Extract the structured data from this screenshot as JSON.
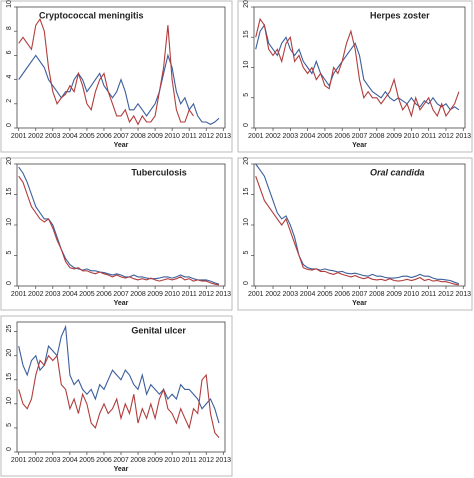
{
  "chart_data": [
    {
      "type": "line",
      "title": "Cryptococcal meningitis",
      "xlabel": "Year",
      "x": [
        2001,
        2001.25,
        2001.5,
        2001.75,
        2002,
        2002.25,
        2002.5,
        2002.75,
        2003,
        2003.25,
        2003.5,
        2003.75,
        2004,
        2004.25,
        2004.5,
        2004.75,
        2005,
        2005.25,
        2005.5,
        2005.75,
        2006,
        2006.25,
        2006.5,
        2006.75,
        2007,
        2007.25,
        2007.5,
        2007.75,
        2008,
        2008.25,
        2008.5,
        2008.75,
        2009,
        2009.25,
        2009.5,
        2009.75,
        2010,
        2010.25,
        2010.5,
        2010.75,
        2011,
        2011.25,
        2011.5,
        2011.75,
        2012,
        2012.25,
        2012.5,
        2012.75
      ],
      "xlim": [
        2000.9,
        2013.1
      ],
      "xticks": [
        2001,
        2002,
        2003,
        2004,
        2005,
        2006,
        2007,
        2008,
        2009,
        2010,
        2011,
        2012,
        2013
      ],
      "ylim": [
        0,
        10
      ],
      "yticks": [
        0,
        2,
        4,
        6,
        8,
        10
      ],
      "series": [
        {
          "color": "#3b5f9c",
          "values": [
            4,
            4.5,
            5,
            5.5,
            6,
            5.5,
            5,
            4,
            3.5,
            3,
            2.5,
            3,
            3,
            4,
            4.5,
            4,
            3,
            3.5,
            4,
            4.5,
            3.5,
            3,
            2.5,
            3,
            4,
            3,
            1.5,
            1.5,
            2,
            1.5,
            1,
            1.5,
            2,
            3,
            4.5,
            6,
            5,
            3,
            2,
            2.5,
            1.5,
            2,
            1,
            0.5,
            0.5,
            0.3,
            0.5,
            0.8
          ]
        },
        {
          "color": "#b23c3c",
          "values": [
            7,
            7.5,
            7,
            6.5,
            8.5,
            9,
            8,
            5,
            3,
            2,
            2.5,
            2.8,
            3.5,
            3,
            4.5,
            3.5,
            2,
            1.5,
            3,
            4,
            4.5,
            3,
            2,
            1,
            1,
            1.5,
            0.5,
            1,
            0.3,
            1,
            0.5,
            0.5,
            1,
            3,
            5,
            8.5,
            4,
            1.5,
            0.5,
            0.5,
            1.5,
            1,
            null,
            null,
            null,
            null,
            null,
            null
          ]
        }
      ]
    },
    {
      "type": "line",
      "title": "Herpes zoster",
      "xlabel": "Year",
      "x": [
        2001,
        2001.25,
        2001.5,
        2001.75,
        2002,
        2002.25,
        2002.5,
        2002.75,
        2003,
        2003.25,
        2003.5,
        2003.75,
        2004,
        2004.25,
        2004.5,
        2004.75,
        2005,
        2005.25,
        2005.5,
        2005.75,
        2006,
        2006.25,
        2006.5,
        2006.75,
        2007,
        2007.25,
        2007.5,
        2007.75,
        2008,
        2008.25,
        2008.5,
        2008.75,
        2009,
        2009.25,
        2009.5,
        2009.75,
        2010,
        2010.25,
        2010.5,
        2010.75,
        2011,
        2011.25,
        2011.5,
        2011.75,
        2012,
        2012.25,
        2012.5,
        2012.75
      ],
      "xlim": [
        2000.9,
        2013.1
      ],
      "xticks": [
        2001,
        2002,
        2003,
        2004,
        2005,
        2006,
        2007,
        2008,
        2009,
        2010,
        2011,
        2012,
        2013
      ],
      "ylim": [
        0,
        20
      ],
      "yticks": [
        0,
        5,
        10,
        15,
        20
      ],
      "series": [
        {
          "color": "#3b5f9c",
          "values": [
            13,
            16,
            17,
            14,
            13,
            12,
            14,
            15,
            13,
            12,
            13,
            11,
            10,
            9,
            11,
            9,
            8,
            7,
            9,
            10,
            11,
            12,
            13,
            14,
            12,
            8,
            7,
            6,
            5.5,
            5,
            6,
            5,
            4.5,
            5,
            4.5,
            4,
            5,
            4,
            3.5,
            4.5,
            4,
            5,
            4,
            3.5,
            4,
            3,
            3.5,
            3
          ]
        },
        {
          "color": "#b23c3c",
          "values": [
            15,
            18,
            17,
            13,
            12,
            13,
            11,
            14,
            15,
            11,
            12,
            10,
            9,
            10,
            8,
            9,
            7,
            6.5,
            10,
            9,
            11,
            14,
            16,
            13,
            8,
            5,
            6,
            5,
            5,
            4,
            5,
            6,
            8,
            5,
            3,
            4,
            2,
            5,
            3,
            4,
            5,
            3,
            2,
            4,
            2,
            3,
            4,
            6
          ]
        }
      ]
    },
    {
      "type": "line",
      "title": "Tuberculosis",
      "xlabel": "Year",
      "x": [
        2001,
        2001.25,
        2001.5,
        2001.75,
        2002,
        2002.25,
        2002.5,
        2002.75,
        2003,
        2003.25,
        2003.5,
        2003.75,
        2004,
        2004.25,
        2004.5,
        2004.75,
        2005,
        2005.25,
        2005.5,
        2005.75,
        2006,
        2006.25,
        2006.5,
        2006.75,
        2007,
        2007.25,
        2007.5,
        2007.75,
        2008,
        2008.25,
        2008.5,
        2008.75,
        2009,
        2009.25,
        2009.5,
        2009.75,
        2010,
        2010.25,
        2010.5,
        2010.75,
        2011,
        2011.25,
        2011.5,
        2011.75,
        2012,
        2012.25,
        2012.5,
        2012.75
      ],
      "xlim": [
        2000.9,
        2013.1
      ],
      "xticks": [
        2001,
        2002,
        2003,
        2004,
        2005,
        2006,
        2007,
        2008,
        2009,
        2010,
        2011,
        2012,
        2013
      ],
      "ylim": [
        0,
        20
      ],
      "yticks": [
        0,
        5,
        10,
        15,
        20
      ],
      "series": [
        {
          "color": "#3b5f9c",
          "values": [
            19.5,
            18.5,
            17,
            15,
            13,
            12,
            11,
            11,
            10,
            8,
            6,
            4.5,
            3.5,
            3,
            2.8,
            2.6,
            2.8,
            2.5,
            2.5,
            2.3,
            2.2,
            2,
            1.8,
            2,
            1.8,
            1.5,
            1.5,
            1.8,
            1.5,
            1.5,
            1.3,
            1.2,
            1.2,
            1.3,
            1.5,
            1.5,
            1.3,
            1.5,
            1.8,
            1.5,
            1.5,
            1.2,
            1,
            1,
            1,
            0.8,
            0.5,
            0.3
          ]
        },
        {
          "color": "#b23c3c",
          "values": [
            18,
            17,
            15,
            13,
            12,
            11,
            10.5,
            11,
            9.5,
            7.5,
            6,
            4,
            3,
            2.8,
            3,
            2.5,
            2.5,
            2.2,
            2,
            2.3,
            2,
            1.8,
            1.5,
            1.8,
            1.5,
            1.3,
            1.5,
            1.2,
            1,
            1.2,
            1,
            1.3,
            1,
            0.8,
            1,
            1.2,
            1,
            1.2,
            1.5,
            1,
            1.2,
            0.8,
            1,
            0.8,
            0.8,
            0.5,
            0.3,
            0.2
          ]
        }
      ]
    },
    {
      "type": "line",
      "title": "Oral candida",
      "xlabel": "Year",
      "x": [
        2001,
        2001.25,
        2001.5,
        2001.75,
        2002,
        2002.25,
        2002.5,
        2002.75,
        2003,
        2003.25,
        2003.5,
        2003.75,
        2004,
        2004.25,
        2004.5,
        2004.75,
        2005,
        2005.25,
        2005.5,
        2005.75,
        2006,
        2006.25,
        2006.5,
        2006.75,
        2007,
        2007.25,
        2007.5,
        2007.75,
        2008,
        2008.25,
        2008.5,
        2008.75,
        2009,
        2009.25,
        2009.5,
        2009.75,
        2010,
        2010.25,
        2010.5,
        2010.75,
        2011,
        2011.25,
        2011.5,
        2011.75,
        2012,
        2012.25,
        2012.5,
        2012.75
      ],
      "xlim": [
        2000.9,
        2013.1
      ],
      "xticks": [
        2001,
        2002,
        2003,
        2004,
        2005,
        2006,
        2007,
        2008,
        2009,
        2010,
        2011,
        2012,
        2013
      ],
      "ylim": [
        0,
        20
      ],
      "yticks": [
        0,
        5,
        10,
        15,
        20
      ],
      "series": [
        {
          "color": "#3b5f9c",
          "values": [
            20,
            19,
            18,
            16,
            14,
            12,
            11,
            11.5,
            10,
            8,
            5,
            3.5,
            3,
            2.8,
            2.8,
            2.6,
            2.8,
            2.6,
            2.5,
            2.3,
            2.4,
            2.1,
            2,
            2.1,
            1.9,
            1.7,
            1.6,
            1.9,
            1.6,
            1.6,
            1.4,
            1.3,
            1.3,
            1.4,
            1.6,
            1.6,
            1.4,
            1.6,
            1.9,
            1.6,
            1.6,
            1.3,
            1.1,
            1.1,
            1,
            0.9,
            0.6,
            0.4
          ]
        },
        {
          "color": "#b23c3c",
          "values": [
            18,
            16,
            14,
            13,
            12,
            11,
            10,
            11,
            9,
            7,
            5,
            3,
            2.7,
            2.6,
            2.8,
            2.4,
            2.4,
            2.1,
            1.9,
            2.2,
            1.9,
            1.7,
            1.5,
            1.7,
            1.4,
            1.2,
            1.4,
            1.1,
            1,
            1.1,
            0.9,
            1.2,
            0.9,
            0.8,
            0.9,
            1.1,
            0.9,
            1.1,
            1.4,
            0.9,
            1.1,
            0.8,
            0.9,
            0.7,
            0.7,
            0.5,
            0.3,
            0.2
          ]
        }
      ]
    },
    {
      "type": "line",
      "title": "Genital ulcer",
      "xlabel": "Year",
      "x": [
        2001,
        2001.25,
        2001.5,
        2001.75,
        2002,
        2002.25,
        2002.5,
        2002.75,
        2003,
        2003.25,
        2003.5,
        2003.75,
        2004,
        2004.25,
        2004.5,
        2004.75,
        2005,
        2005.25,
        2005.5,
        2005.75,
        2006,
        2006.25,
        2006.5,
        2006.75,
        2007,
        2007.25,
        2007.5,
        2007.75,
        2008,
        2008.25,
        2008.5,
        2008.75,
        2009,
        2009.25,
        2009.5,
        2009.75,
        2010,
        2010.25,
        2010.5,
        2010.75,
        2011,
        2011.25,
        2011.5,
        2011.75,
        2012,
        2012.25,
        2012.5,
        2012.75
      ],
      "xlim": [
        2000.9,
        2013.1
      ],
      "xticks": [
        2001,
        2002,
        2003,
        2004,
        2005,
        2006,
        2007,
        2008,
        2009,
        2010,
        2011,
        2012,
        2013
      ],
      "ylim": [
        0,
        27
      ],
      "yticks": [
        0,
        5,
        10,
        15,
        20,
        25
      ],
      "series": [
        {
          "color": "#3b5f9c",
          "values": [
            22,
            18,
            16,
            19,
            20,
            17,
            18,
            22,
            21,
            20,
            24,
            26,
            16,
            14,
            15,
            13,
            12,
            13,
            11,
            14,
            13,
            15,
            17,
            16,
            15,
            17,
            16,
            14,
            13,
            16,
            12,
            14,
            13,
            12,
            13,
            11,
            12,
            11,
            14,
            13,
            13,
            12,
            11,
            9,
            10,
            11,
            9,
            6
          ]
        },
        {
          "color": "#b23c3c",
          "values": [
            13,
            10,
            9,
            11,
            16,
            19,
            18,
            20,
            19,
            20,
            14,
            13,
            9,
            11,
            8,
            12,
            10,
            6,
            5,
            8,
            10,
            8,
            9,
            11,
            7,
            10,
            8,
            12,
            6,
            9,
            7,
            10,
            7,
            11,
            13,
            9,
            8,
            6,
            9,
            7,
            5,
            9,
            8,
            15,
            16,
            8,
            4,
            3
          ]
        }
      ]
    }
  ]
}
